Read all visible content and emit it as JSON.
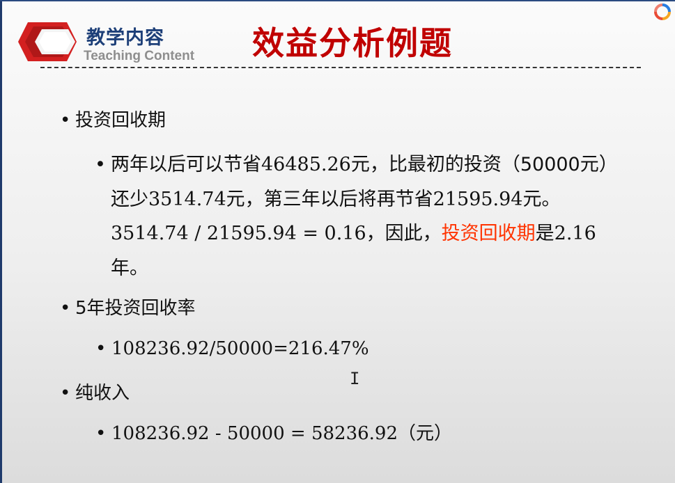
{
  "header": {
    "section_title": "教学内容",
    "section_subtitle": "Teaching Content",
    "slide_title": "效益分析例题"
  },
  "content": {
    "bullet1": "投资回收期",
    "bullet1_sub": {
      "part1": "两年以后可以节省",
      "num1": "46485.26",
      "part2": "元，比最初的投资（50000元）还少",
      "num2": "3514.74",
      "part3": "元，第三年以后将再节省",
      "num3": "21595.94",
      "part4": "元。",
      "equation": "3514.74 / 21595.94 = 0.16",
      "part5": "，因此，",
      "highlight": "投资回收期",
      "part6": "是",
      "num4": "2.16",
      "part7": "年。"
    },
    "bullet2": "5年投资回收率",
    "bullet2_sub": "108236.92/50000=216.47%",
    "bullet3": "纯收入",
    "bullet3_sub_value": "108236.92 - 50000 = 58236.92",
    "bullet3_sub_unit": "（元）"
  },
  "colors": {
    "title_red": "#c00000",
    "highlight_red": "#ff3300",
    "section_blue": "#1d3f78"
  },
  "icons": {
    "logo": "red-hexagon-logo-icon",
    "corner": "circular-app-icon",
    "cursor": "text-cursor-icon"
  }
}
